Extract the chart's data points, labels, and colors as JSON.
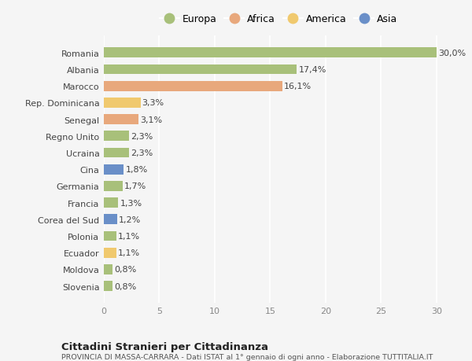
{
  "countries": [
    "Romania",
    "Albania",
    "Marocco",
    "Rep. Dominicana",
    "Senegal",
    "Regno Unito",
    "Ucraina",
    "Cina",
    "Germania",
    "Francia",
    "Corea del Sud",
    "Polonia",
    "Ecuador",
    "Moldova",
    "Slovenia"
  ],
  "values": [
    30.0,
    17.4,
    16.1,
    3.3,
    3.1,
    2.3,
    2.3,
    1.8,
    1.7,
    1.3,
    1.2,
    1.1,
    1.1,
    0.8,
    0.8
  ],
  "labels": [
    "30,0%",
    "17,4%",
    "16,1%",
    "3,3%",
    "3,1%",
    "2,3%",
    "2,3%",
    "1,8%",
    "1,7%",
    "1,3%",
    "1,2%",
    "1,1%",
    "1,1%",
    "0,8%",
    "0,8%"
  ],
  "continents": [
    "Europa",
    "Europa",
    "Africa",
    "America",
    "Africa",
    "Europa",
    "Europa",
    "Asia",
    "Europa",
    "Europa",
    "Asia",
    "Europa",
    "America",
    "Europa",
    "Europa"
  ],
  "continent_colors": {
    "Europa": "#a8c07a",
    "Africa": "#e8a87c",
    "America": "#f0c96e",
    "Asia": "#6a8fc8"
  },
  "legend_order": [
    "Europa",
    "Africa",
    "America",
    "Asia"
  ],
  "xlim": [
    0,
    31.5
  ],
  "xticks": [
    0,
    5,
    10,
    15,
    20,
    25,
    30
  ],
  "title": "Cittadini Stranieri per Cittadinanza",
  "subtitle": "PROVINCIA DI MASSA-CARRARA - Dati ISTAT al 1° gennaio di ogni anno - Elaborazione TUTTITALIA.IT",
  "bg_color": "#f5f5f5",
  "grid_color": "#ffffff",
  "bar_height": 0.6,
  "label_fontsize": 8,
  "ytick_fontsize": 8,
  "xtick_fontsize": 8
}
